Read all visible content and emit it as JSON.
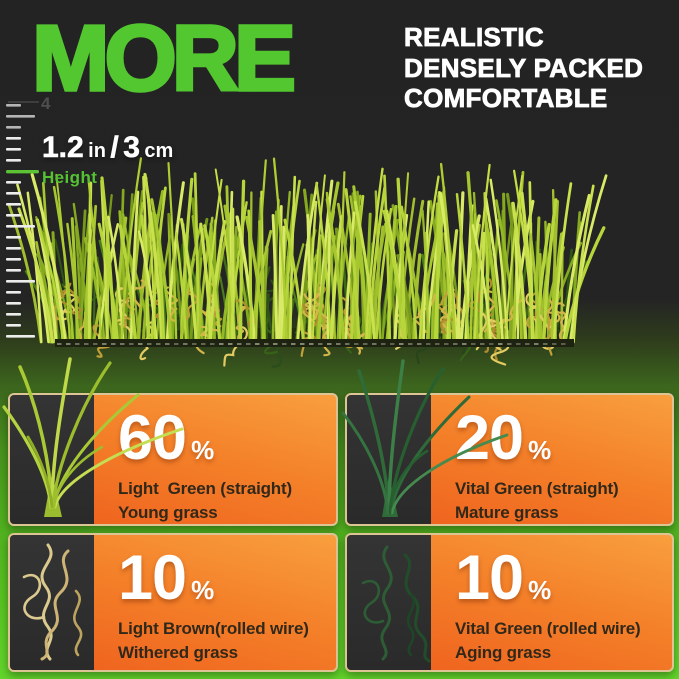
{
  "page": {
    "background_dark": "#242424",
    "accent_green": "#53c72f",
    "card_orange_top": "#f89f3e",
    "card_orange_bottom": "#ee5e1d",
    "card_border_tan": "#dcc494"
  },
  "header": {
    "title": "MORE",
    "features": [
      "REALISTIC",
      "DENSELY PACKED",
      "COMFORTABLE"
    ]
  },
  "ruler": {
    "mark": "4"
  },
  "measurement": {
    "inches": "1.2",
    "inch_unit": "in",
    "slash": "/",
    "cm": "3",
    "cm_unit": "cm",
    "label": "Height"
  },
  "cards": [
    {
      "percent": "60",
      "sign": "%",
      "type": "Light  Green (straight)",
      "desc": "Young grass",
      "icon": "light-green-straight-grass-icon"
    },
    {
      "percent": "20",
      "sign": "%",
      "type": "Vital Green (straight)",
      "desc": "Mature grass",
      "icon": "vital-green-straight-grass-icon"
    },
    {
      "percent": "10",
      "sign": "%",
      "type": "Light Brown(rolled wire)",
      "desc": "Withered grass",
      "icon": "light-brown-rolled-wire-icon"
    },
    {
      "percent": "10",
      "sign": "%",
      "type": "Vital Green (rolled wire)",
      "desc": "Aging grass",
      "icon": "vital-green-rolled-wire-icon"
    }
  ]
}
